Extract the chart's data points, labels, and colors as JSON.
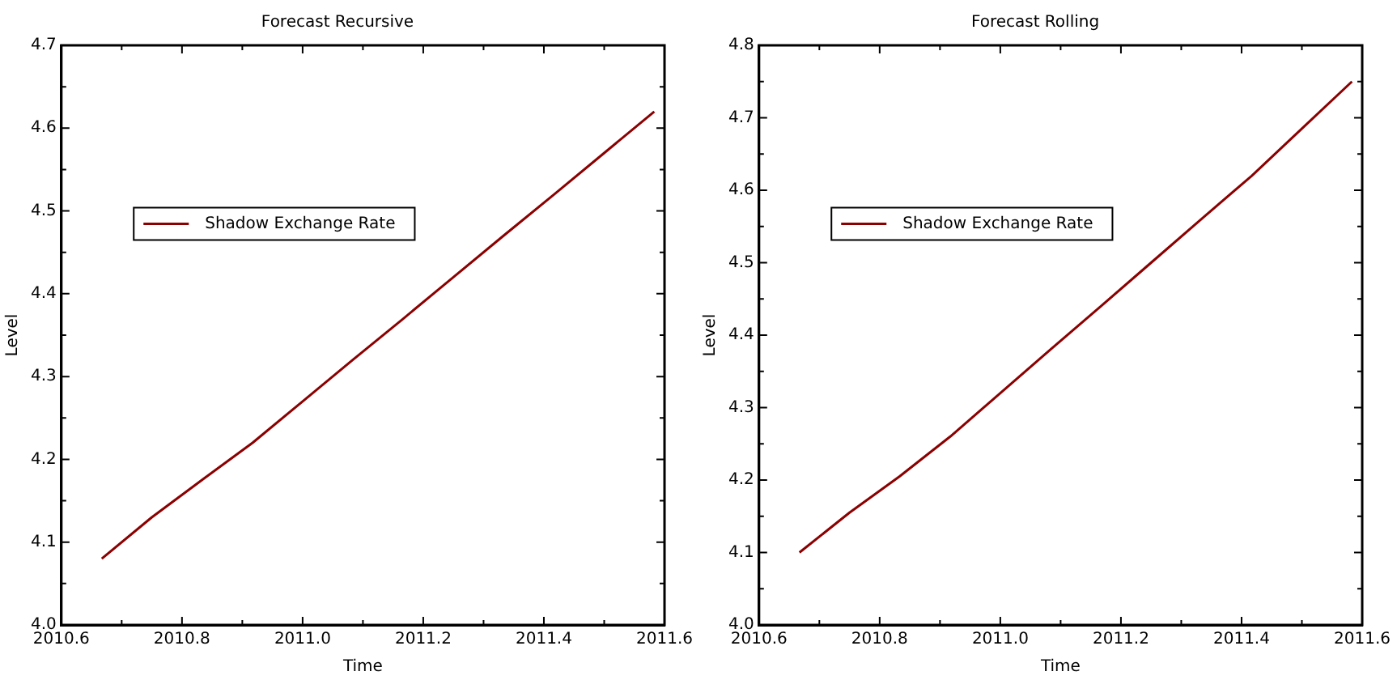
{
  "chart_data": [
    {
      "type": "line",
      "title": "Forecast Recursive",
      "xlabel": "Time",
      "ylabel": "Level",
      "legend": "top left",
      "marker": "none",
      "line_style": "solid",
      "grid": false,
      "xlim": [
        2010.6,
        2011.6
      ],
      "xticks": [
        2010.6,
        {
          "value": 2010.7,
          "label": null
        },
        2010.8,
        {
          "value": 2010.9,
          "label": null
        },
        {
          "value": 2011,
          "label": "2011.0"
        },
        {
          "value": 2011.1,
          "label": null
        },
        2011.2,
        {
          "value": 2011.3,
          "label": null
        },
        2011.4,
        {
          "value": 2011.5,
          "label": null
        },
        2011.6
      ],
      "ylim": [
        4.0,
        4.7
      ],
      "yticks": [
        {
          "value": 4,
          "label": "4.0"
        },
        {
          "value": 4.05,
          "label": null
        },
        4.1,
        {
          "value": 4.15,
          "label": null
        },
        4.2,
        {
          "value": 4.25,
          "label": null
        },
        4.3,
        {
          "value": 4.35,
          "label": null
        },
        4.4,
        {
          "value": 4.45,
          "label": null
        },
        4.5,
        {
          "value": 4.55,
          "label": null
        },
        4.6,
        {
          "value": 4.65,
          "label": null
        },
        4.7
      ],
      "x": [
        2010.667,
        2010.75,
        2010.833,
        2010.917,
        2011.0,
        2011.083,
        2011.167,
        2011.25,
        2011.333,
        2011.417,
        2011.5,
        2011.583
      ],
      "series": [
        {
          "name": "Shadow Exchange Rate",
          "color": "#8b0000",
          "values": [
            4.08,
            4.13,
            4.175,
            4.22,
            4.27,
            4.32,
            4.37,
            4.42,
            4.47,
            4.52,
            4.57,
            4.62
          ]
        }
      ]
    },
    {
      "type": "line",
      "title": "Forecast Rolling",
      "xlabel": "Time",
      "ylabel": "Level",
      "legend": "top left",
      "marker": "none",
      "line_style": "solid",
      "grid": false,
      "xlim": [
        2010.6,
        2011.6
      ],
      "xticks": [
        2010.6,
        {
          "value": 2010.7,
          "label": null
        },
        2010.8,
        {
          "value": 2010.9,
          "label": null
        },
        {
          "value": 2011,
          "label": "2011.0"
        },
        {
          "value": 2011.1,
          "label": null
        },
        2011.2,
        {
          "value": 2011.3,
          "label": null
        },
        2011.4,
        {
          "value": 2011.5,
          "label": null
        },
        2011.6
      ],
      "ylim": [
        4.0,
        4.8
      ],
      "yticks": [
        {
          "value": 4,
          "label": "4.0"
        },
        {
          "value": 4.05,
          "label": null
        },
        4.1,
        {
          "value": 4.15,
          "label": null
        },
        4.2,
        {
          "value": 4.25,
          "label": null
        },
        4.3,
        {
          "value": 4.35,
          "label": null
        },
        4.4,
        {
          "value": 4.45,
          "label": null
        },
        4.5,
        {
          "value": 4.55,
          "label": null
        },
        4.6,
        {
          "value": 4.65,
          "label": null
        },
        4.7,
        {
          "value": 4.75,
          "label": null
        },
        4.8
      ],
      "x": [
        2010.667,
        2010.75,
        2010.833,
        2010.917,
        2011.0,
        2011.083,
        2011.167,
        2011.25,
        2011.333,
        2011.417,
        2011.5,
        2011.583
      ],
      "series": [
        {
          "name": "Shadow Exchange Rate",
          "color": "#8b0000",
          "values": [
            4.1,
            4.155,
            4.205,
            4.26,
            4.32,
            4.38,
            4.44,
            4.5,
            4.56,
            4.62,
            4.685,
            4.75
          ]
        }
      ]
    }
  ]
}
